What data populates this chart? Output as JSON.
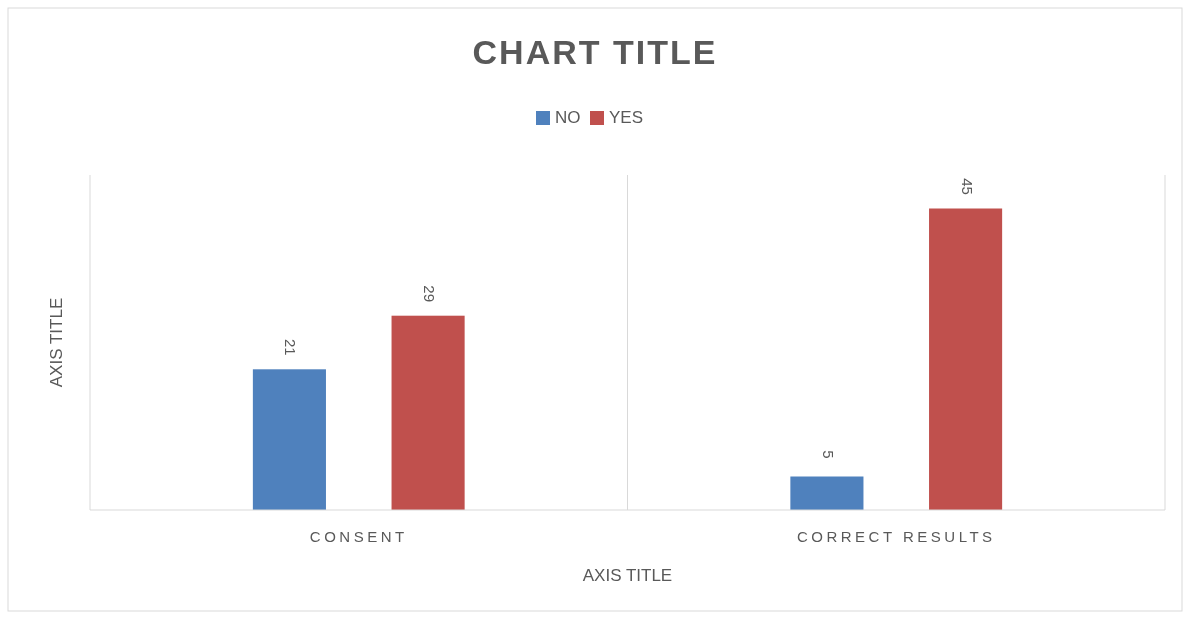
{
  "chart_data": {
    "type": "bar",
    "title": "CHART TITLE",
    "xlabel": "AXIS TITLE",
    "ylabel": "AXIS TITLE",
    "categories": [
      "CONSENT",
      "CORRECT RESULTS"
    ],
    "series": [
      {
        "name": "NO",
        "color": "#4f81bd",
        "values": [
          21,
          5
        ]
      },
      {
        "name": "YES",
        "color": "#c0504d",
        "values": [
          29,
          45
        ]
      }
    ],
    "ylim": [
      0,
      50
    ],
    "data_labels": true,
    "grid": "x",
    "legend": "top",
    "tick_labels": "x"
  }
}
